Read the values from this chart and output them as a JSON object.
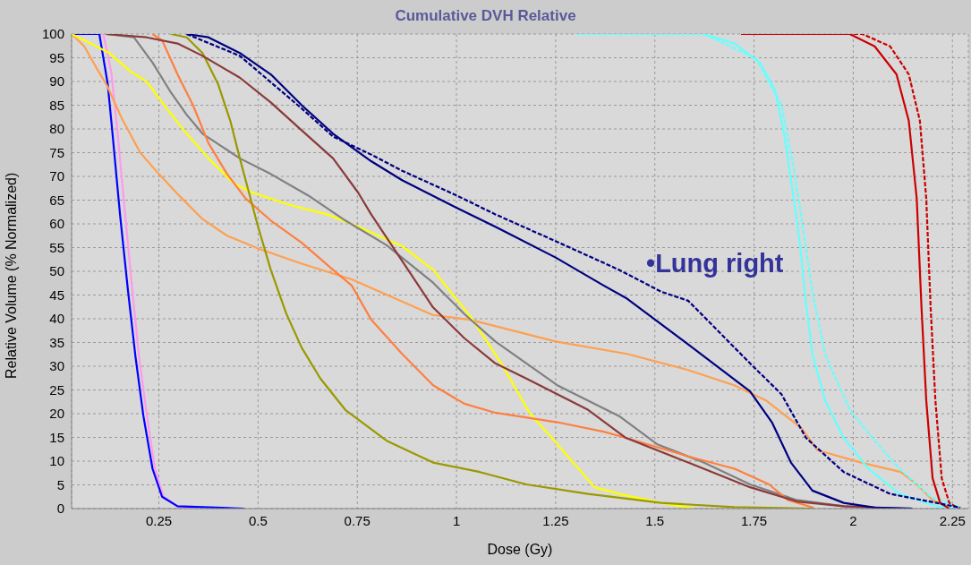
{
  "chart_data": {
    "type": "line",
    "title": "Cumulative DVH Relative",
    "xlabel": "Dose (Gy)",
    "ylabel": "Relative Volume (% Normalized)",
    "xlim": [
      0.03,
      2.29
    ],
    "ylim": [
      0,
      100
    ],
    "xticks": [
      0.25,
      0.5,
      0.75,
      1,
      1.25,
      1.5,
      1.75,
      2,
      2.25
    ],
    "yticks": [
      0,
      5,
      10,
      15,
      20,
      25,
      30,
      35,
      40,
      45,
      50,
      55,
      60,
      65,
      70,
      75,
      80,
      85,
      90,
      95,
      100
    ],
    "grid": true,
    "marker": "none",
    "line_style": "solid",
    "annotations": [
      "•Lung right"
    ],
    "series": [
      {
        "color": "#ff99ee",
        "x": [
          0.03,
          0.11,
          0.13,
          0.145,
          0.165,
          0.183,
          0.2,
          0.22,
          0.24,
          0.262,
          0.3,
          0.34
        ],
        "values": [
          100,
          100,
          92,
          80,
          62,
          46,
          32,
          19.5,
          8.4,
          2.5,
          0.3,
          0
        ]
      },
      {
        "color": "#0000ff",
        "x": [
          0.03,
          0.1,
          0.121,
          0.132,
          0.152,
          0.172,
          0.191,
          0.211,
          0.234,
          0.258,
          0.297,
          0.465
        ],
        "values": [
          100,
          100,
          89.5,
          80,
          62,
          46,
          32,
          19.5,
          8.4,
          2.5,
          0.5,
          0
        ]
      },
      {
        "color": "#ffa050",
        "x": [
          0.03,
          0.062,
          0.093,
          0.12,
          0.156,
          0.203,
          0.25,
          0.297,
          0.36,
          0.422,
          0.5,
          0.61,
          0.736,
          0.94,
          1.035,
          1.25,
          1.43,
          1.58,
          1.7,
          1.78,
          1.87,
          1.91,
          2.02,
          2.12,
          2.16,
          2.2,
          2.24
        ],
        "values": [
          100,
          97.4,
          92.8,
          89,
          82.3,
          75,
          70.5,
          66.3,
          61,
          57.5,
          54.8,
          51.6,
          48.3,
          40.8,
          39.8,
          35.2,
          32.6,
          29.3,
          26,
          22.8,
          16.9,
          12.3,
          9.7,
          7.7,
          5.1,
          1.8,
          0.2
        ]
      },
      {
        "color": "#ffff00",
        "x": [
          0.03,
          0.078,
          0.125,
          0.18,
          0.219,
          0.258,
          0.313,
          0.375,
          0.438,
          0.485,
          0.579,
          0.673,
          0.736,
          0.863,
          0.941,
          1.035,
          1.113,
          1.184,
          1.254,
          1.348,
          1.41,
          1.516,
          1.6
        ],
        "values": [
          100,
          98,
          96,
          92,
          90,
          85.6,
          79.7,
          73.8,
          68.6,
          66.6,
          64,
          62,
          60,
          55.3,
          50.3,
          40.5,
          30.6,
          20.2,
          13.6,
          4.5,
          3.1,
          1.2,
          0
        ]
      },
      {
        "color": "#808080",
        "x": [
          0.117,
          0.187,
          0.234,
          0.281,
          0.32,
          0.36,
          0.407,
          0.454,
          0.532,
          0.626,
          0.72,
          0.824,
          0.941,
          1.02,
          1.098,
          1.254,
          1.41,
          1.505,
          1.623,
          1.74,
          1.858,
          1.976,
          2.09
        ],
        "values": [
          100,
          99.3,
          94,
          87.6,
          83,
          79,
          76.4,
          73.8,
          70.5,
          66,
          60.7,
          55.5,
          47.6,
          41,
          35.2,
          26,
          19.5,
          13.6,
          9.7,
          5.1,
          1.8,
          0.5,
          0
        ]
      },
      {
        "color": "#ff7f40",
        "x": [
          0.234,
          0.258,
          0.297,
          0.336,
          0.375,
          0.422,
          0.469,
          0.532,
          0.61,
          0.689,
          0.736,
          0.785,
          0.863,
          0.941,
          1.02,
          1.098,
          1.254,
          1.371,
          1.427,
          1.584,
          1.701,
          1.788,
          1.835,
          1.9
        ],
        "values": [
          100,
          98.7,
          91.5,
          85,
          77,
          70.5,
          65.3,
          60.7,
          56,
          50.3,
          47,
          39.8,
          32.6,
          26,
          22.1,
          20.2,
          18.2,
          16.2,
          14.9,
          11,
          8.4,
          5.1,
          1.8,
          0.2
        ]
      },
      {
        "color": "#999900",
        "x": [
          0.281,
          0.32,
          0.36,
          0.399,
          0.43,
          0.454,
          0.477,
          0.5,
          0.532,
          0.571,
          0.61,
          0.657,
          0.72,
          0.824,
          0.941,
          1.059,
          1.176,
          1.332,
          1.516,
          1.7,
          1.9
        ],
        "values": [
          100,
          99.3,
          96,
          89.5,
          81.7,
          73.8,
          66.6,
          59.4,
          50.3,
          41.1,
          33.9,
          27.4,
          20.8,
          14.3,
          9.7,
          7.7,
          5.1,
          3.1,
          1.2,
          0.3,
          0
        ]
      },
      {
        "color": "#8b3a3a",
        "x": [
          0.117,
          0.219,
          0.297,
          0.36,
          0.454,
          0.532,
          0.61,
          0.689,
          0.752,
          0.785,
          0.863,
          0.941,
          1.02,
          1.098,
          1.176,
          1.332,
          1.427,
          1.584,
          1.74,
          1.858,
          1.976,
          2.13
        ],
        "values": [
          100,
          99.3,
          98,
          95.4,
          90.8,
          85.6,
          79.7,
          73.8,
          66.6,
          62,
          52.2,
          42.4,
          35.9,
          30.6,
          27.4,
          20.8,
          14.9,
          9.7,
          4.5,
          1.5,
          0.5,
          0
        ]
      },
      {
        "color": "#000080",
        "x": [
          0.32,
          0.375,
          0.454,
          0.532,
          0.61,
          0.689,
          0.785,
          0.863,
          1,
          1.098,
          1.25,
          1.371,
          1.427,
          1.584,
          1.74,
          1.795,
          1.843,
          1.897,
          1.976,
          2.054,
          2.15
        ],
        "values": [
          100,
          99.3,
          96,
          91.5,
          85,
          79,
          73.2,
          69.2,
          63.4,
          59.4,
          52.9,
          47,
          44.4,
          34.6,
          24.7,
          18.2,
          9.7,
          3.8,
          1.2,
          0.2,
          0
        ]
      },
      {
        "color": "#66ffff",
        "x": [
          1.3,
          1.623,
          1.701,
          1.764,
          1.803,
          1.827,
          1.85,
          1.866,
          1.882,
          1.897,
          1.929,
          1.976,
          2.038,
          2.117,
          2.21,
          2.27
        ],
        "values": [
          100,
          100,
          98,
          94,
          88.2,
          78.4,
          65.3,
          55.5,
          42.4,
          32.6,
          22.8,
          14.9,
          8.4,
          3.1,
          0.5,
          0
        ]
      },
      {
        "color": "#66ffff",
        "line_style": "dashed",
        "x": [
          1.623,
          1.756,
          1.819,
          1.85,
          1.874,
          1.897,
          1.929,
          1.991,
          2.054,
          2.117,
          2.195,
          2.27
        ],
        "values": [
          100,
          94.8,
          85,
          71.9,
          58.8,
          45.7,
          32.6,
          20.8,
          14.3,
          8.4,
          2.5,
          0.2
        ]
      },
      {
        "color": "#cc0000",
        "x": [
          1.72,
          1.991,
          2.054,
          2.109,
          2.14,
          2.16,
          2.172,
          2.184,
          2.2,
          2.219,
          2.242
        ],
        "values": [
          100,
          100,
          97.4,
          91.5,
          81.7,
          65.3,
          42.4,
          22.8,
          6.4,
          1.2,
          0
        ]
      },
      {
        "color": "#cc0000",
        "line_style": "dashed",
        "x": [
          1.717,
          2.023,
          2.093,
          2.14,
          2.168,
          2.184,
          2.195,
          2.207,
          2.223,
          2.242,
          2.266
        ],
        "values": [
          100,
          100,
          97.4,
          91.5,
          81.7,
          65.3,
          42.4,
          22.8,
          6.4,
          1.2,
          0
        ]
      },
      {
        "color": "#000080",
        "line_style": "dashed",
        "x": [
          0.32,
          0.454,
          0.61,
          0.689,
          0.785,
          0.863,
          1,
          1.098,
          1.254,
          1.41,
          1.516,
          1.584,
          1.74,
          1.819,
          1.881,
          1.976,
          2.093,
          2.21,
          2.27
        ],
        "values": [
          100,
          95.4,
          84.3,
          78.4,
          74.6,
          71.2,
          66,
          62,
          56.2,
          50.3,
          45.7,
          43.8,
          30.6,
          24.1,
          14.9,
          7.7,
          3.1,
          1.2,
          0.2
        ]
      }
    ]
  }
}
